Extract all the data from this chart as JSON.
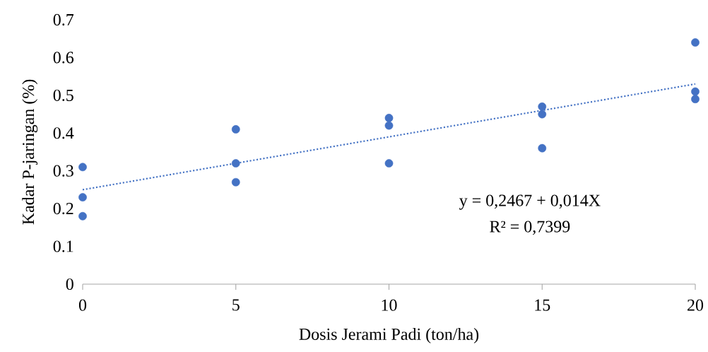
{
  "chart_data": {
    "type": "scatter",
    "xlabel": "Dosis Jerami Padi (ton/ha)",
    "ylabel": "Kadar P-jaringan (%)",
    "xlim": [
      0,
      20
    ],
    "xticks": [
      0,
      5,
      10,
      15,
      20
    ],
    "ylim": [
      0,
      0.7
    ],
    "yticks": [
      0,
      0.1,
      0.2,
      0.3,
      0.4,
      0.5,
      0.6,
      0.7
    ],
    "grid": false,
    "series": [
      {
        "type": "scatter",
        "color": "#4472c4",
        "marker": "circle",
        "x": [
          0,
          0,
          0,
          5,
          5,
          5,
          10,
          10,
          10,
          15,
          15,
          15,
          20,
          20,
          20
        ],
        "values": [
          0.31,
          0.23,
          0.18,
          0.41,
          0.32,
          0.27,
          0.44,
          0.42,
          0.32,
          0.47,
          0.45,
          0.36,
          0.64,
          0.51,
          0.49
        ]
      },
      {
        "type": "line",
        "color": "#4472c4",
        "marker": "none",
        "line_style": "dotted",
        "x": [
          0,
          20
        ],
        "values": [
          0.25,
          0.53
        ]
      }
    ],
    "annotations": [
      "y = 0,2467 + 0,014X",
      "R² = 0,7399"
    ]
  }
}
